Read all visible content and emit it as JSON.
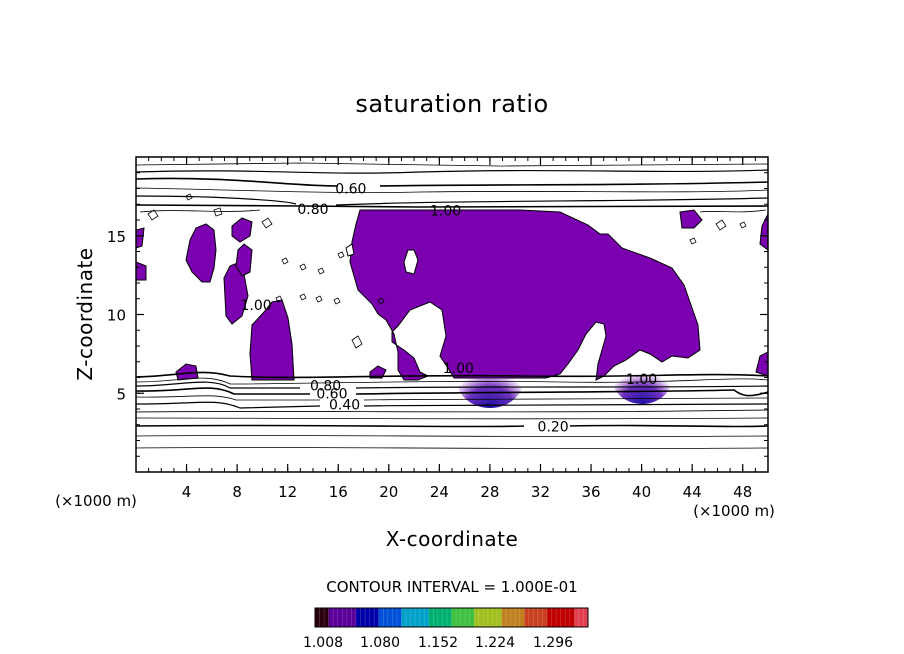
{
  "chart_data": {
    "type": "contour",
    "title": "saturation ratio",
    "xlabel": "X-coordinate",
    "ylabel": "Z-coordinate",
    "x_unit_label": "(×1000 m)",
    "z_unit_label": "(×1000 m)",
    "xlim": [
      0,
      50
    ],
    "ylim": [
      0,
      20
    ],
    "x_ticks": [
      4,
      8,
      12,
      16,
      20,
      24,
      28,
      32,
      36,
      40,
      44,
      48
    ],
    "y_ticks": [
      5,
      10,
      15
    ],
    "contour_interval_text": "CONTOUR INTERVAL = 1.000E-01",
    "contour_labels": [
      {
        "text": "0.60",
        "x": 17.0,
        "z": 18.0
      },
      {
        "text": "0.80",
        "x": 14.0,
        "z": 16.7
      },
      {
        "text": "1.00",
        "x": 24.5,
        "z": 16.6
      },
      {
        "text": "1.00",
        "x": 9.5,
        "z": 10.6
      },
      {
        "text": "1.00",
        "x": 25.5,
        "z": 6.6
      },
      {
        "text": "1.00",
        "x": 40.0,
        "z": 5.9
      },
      {
        "text": "0.80",
        "x": 15.0,
        "z": 5.5
      },
      {
        "text": "0.60",
        "x": 15.5,
        "z": 5.0
      },
      {
        "text": "0.40",
        "x": 16.5,
        "z": 4.3
      },
      {
        "text": "0.20",
        "x": 33.0,
        "z": 2.9
      }
    ],
    "colorbar": {
      "ticks": [
        "1.008",
        "1.080",
        "1.152",
        "1.224",
        "1.296"
      ],
      "colors": [
        "#2a0010",
        "#5a0098",
        "#0000a8",
        "#0050d8",
        "#00a0c8",
        "#00b070",
        "#40c040",
        "#a0c020",
        "#c08020",
        "#c84020",
        "#c00000",
        "#e04050"
      ]
    },
    "fill_color": "#7a00b0",
    "core_color": "#1a10a0"
  }
}
